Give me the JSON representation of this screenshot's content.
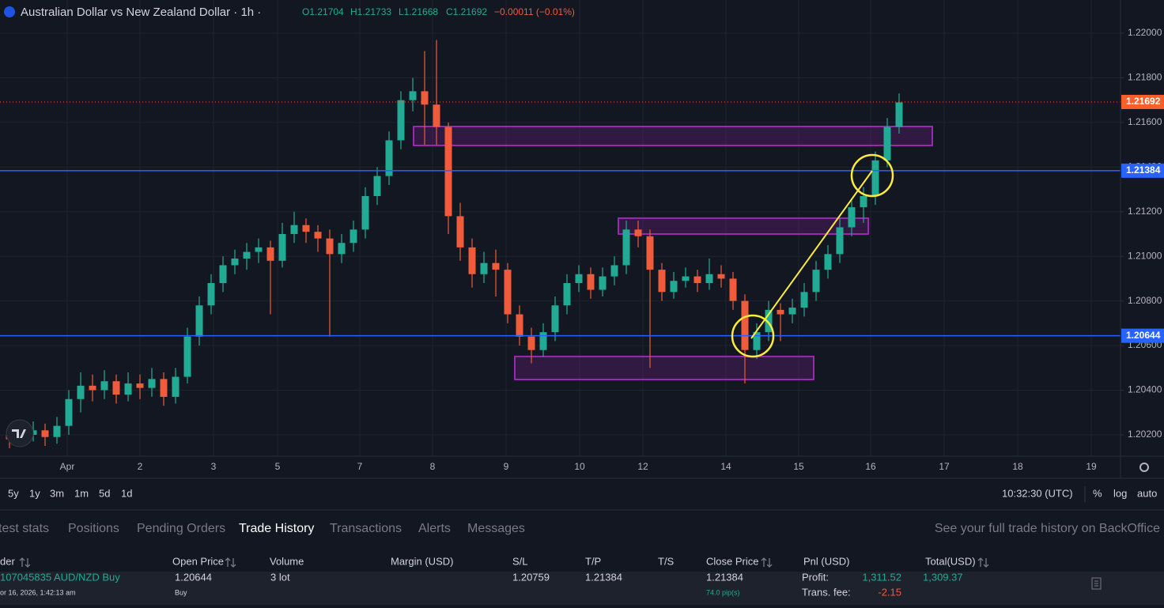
{
  "header": {
    "title": "Australian Dollar vs New Zealand Dollar · 1h ·",
    "ohlc": [
      "O1.21704",
      "H1.21733",
      "L1.21668",
      "C1.21692",
      "−0.00011 (−0.01%)"
    ]
  },
  "chart_data": {
    "type": "candlestick",
    "categories": [
      "Apr",
      "2",
      "3",
      "5",
      "7",
      "8",
      "9",
      "10",
      "12",
      "14",
      "15",
      "16",
      "17",
      "18",
      "19"
    ],
    "ylim": [
      1.20104,
      1.22149
    ],
    "yticks": [
      {
        "value": 1.22,
        "label": "1.22000"
      },
      {
        "value": 1.218,
        "label": "1.21800"
      },
      {
        "value": 1.216,
        "label": "1.21600"
      },
      {
        "value": 1.214,
        "label": "1.21400"
      },
      {
        "value": 1.212,
        "label": "1.21200"
      },
      {
        "value": 1.21,
        "label": "1.21000"
      },
      {
        "value": 1.208,
        "label": "1.20800"
      },
      {
        "value": 1.206,
        "label": "1.20600"
      },
      {
        "value": 1.204,
        "label": "1.20400"
      },
      {
        "value": 1.202,
        "label": "1.20200"
      }
    ],
    "grid": true,
    "up_color": "#22ab94",
    "down_color": "#ef5b3b",
    "candles": [
      [
        1.202,
        1.2024,
        1.2014,
        1.2018
      ],
      [
        1.2018,
        1.2025,
        1.2015,
        1.202
      ],
      [
        1.202,
        1.2026,
        1.2017,
        1.2022
      ],
      [
        1.2022,
        1.2025,
        1.2015,
        1.2019
      ],
      [
        1.2019,
        1.2028,
        1.2016,
        1.2024
      ],
      [
        1.2024,
        1.204,
        1.202,
        1.2036
      ],
      [
        1.2036,
        1.2048,
        1.203,
        1.2042
      ],
      [
        1.2042,
        1.2047,
        1.2035,
        1.204
      ],
      [
        1.204,
        1.2049,
        1.2036,
        1.2044
      ],
      [
        1.2044,
        1.2047,
        1.2034,
        1.2038
      ],
      [
        1.2038,
        1.2048,
        1.2035,
        1.2043
      ],
      [
        1.2043,
        1.2047,
        1.2036,
        1.2041
      ],
      [
        1.2041,
        1.205,
        1.2037,
        1.2045
      ],
      [
        1.2045,
        1.2048,
        1.2033,
        1.2037
      ],
      [
        1.2037,
        1.205,
        1.2034,
        1.2046
      ],
      [
        1.2046,
        1.2068,
        1.2043,
        1.2064
      ],
      [
        1.2064,
        1.2082,
        1.206,
        1.2078
      ],
      [
        1.2078,
        1.2092,
        1.2074,
        1.2088
      ],
      [
        1.2088,
        1.21,
        1.2084,
        1.2096
      ],
      [
        1.2096,
        1.2103,
        1.2092,
        1.2099
      ],
      [
        1.2099,
        1.2106,
        1.2094,
        1.2102
      ],
      [
        1.2102,
        1.2108,
        1.2097,
        1.2104
      ],
      [
        1.2104,
        1.2107,
        1.2074,
        1.2098
      ],
      [
        1.2098,
        1.2115,
        1.2095,
        1.211
      ],
      [
        1.211,
        1.212,
        1.2106,
        1.2114
      ],
      [
        1.2114,
        1.2117,
        1.2106,
        1.2111
      ],
      [
        1.2111,
        1.2114,
        1.2102,
        1.2108
      ],
      [
        1.2108,
        1.2112,
        1.2064,
        1.2101
      ],
      [
        1.2101,
        1.211,
        1.2097,
        1.2106
      ],
      [
        1.2106,
        1.2116,
        1.2102,
        1.2112
      ],
      [
        1.2112,
        1.2131,
        1.2108,
        1.2127
      ],
      [
        1.2127,
        1.214,
        1.2123,
        1.2136
      ],
      [
        1.2136,
        1.2156,
        1.2132,
        1.2152
      ],
      [
        1.2152,
        1.2174,
        1.2148,
        1.217
      ],
      [
        1.217,
        1.218,
        1.2165,
        1.2174
      ],
      [
        1.2174,
        1.2192,
        1.215,
        1.2168
      ],
      [
        1.2168,
        1.2197,
        1.215,
        1.2158
      ],
      [
        1.2158,
        1.216,
        1.211,
        1.2118
      ],
      [
        1.2118,
        1.2124,
        1.2098,
        1.2104
      ],
      [
        1.2104,
        1.2108,
        1.2086,
        1.2092
      ],
      [
        1.2092,
        1.2102,
        1.2088,
        1.2097
      ],
      [
        1.2097,
        1.2103,
        1.2082,
        1.2094
      ],
      [
        1.2094,
        1.2097,
        1.207,
        1.2074
      ],
      [
        1.2074,
        1.2078,
        1.206,
        1.2064
      ],
      [
        1.2064,
        1.2068,
        1.2052,
        1.2058
      ],
      [
        1.2058,
        1.207,
        1.2055,
        1.2066
      ],
      [
        1.2066,
        1.2082,
        1.2062,
        1.2078
      ],
      [
        1.2078,
        1.2092,
        1.2074,
        1.2088
      ],
      [
        1.2088,
        1.2096,
        1.2084,
        1.2092
      ],
      [
        1.2092,
        1.2095,
        1.2081,
        1.2085
      ],
      [
        1.2085,
        1.2095,
        1.2082,
        1.2091
      ],
      [
        1.2091,
        1.21,
        1.2087,
        1.2096
      ],
      [
        1.2096,
        1.2116,
        1.2092,
        1.2112
      ],
      [
        1.2112,
        1.2116,
        1.2104,
        1.2109
      ],
      [
        1.2109,
        1.2112,
        1.205,
        1.2094
      ],
      [
        1.2094,
        1.2097,
        1.208,
        1.2084
      ],
      [
        1.2084,
        1.2093,
        1.2081,
        1.2089
      ],
      [
        1.2089,
        1.2095,
        1.2086,
        1.2091
      ],
      [
        1.2091,
        1.2094,
        1.2084,
        1.2088
      ],
      [
        1.2088,
        1.2099,
        1.2085,
        1.2092
      ],
      [
        1.2092,
        1.2096,
        1.2086,
        1.209
      ],
      [
        1.209,
        1.2093,
        1.2076,
        1.208
      ],
      [
        1.208,
        1.2083,
        1.2043,
        1.2058
      ],
      [
        1.2058,
        1.207,
        1.2054,
        1.2066
      ],
      [
        1.2066,
        1.208,
        1.2062,
        1.2076
      ],
      [
        1.2076,
        1.2079,
        1.2062,
        1.2074
      ],
      [
        1.2074,
        1.2081,
        1.207,
        1.2077
      ],
      [
        1.2077,
        1.2088,
        1.2073,
        1.2084
      ],
      [
        1.2084,
        1.2098,
        1.208,
        1.2094
      ],
      [
        1.2094,
        1.2105,
        1.209,
        1.2101
      ],
      [
        1.2101,
        1.2117,
        1.2097,
        1.2113
      ],
      [
        1.2113,
        1.2126,
        1.2109,
        1.2122
      ],
      [
        1.2122,
        1.2131,
        1.2115,
        1.2127
      ],
      [
        1.2127,
        1.2147,
        1.2123,
        1.2143
      ],
      [
        1.2143,
        1.2162,
        1.214,
        1.2158
      ],
      [
        1.2158,
        1.2173,
        1.2155,
        1.2169
      ]
    ],
    "levels": [
      {
        "value": 1.21384,
        "label": "1.21384"
      },
      {
        "value": 1.20644,
        "label": "1.20644"
      }
    ],
    "level_color": "#2962ff",
    "last_price": {
      "value": 1.21692,
      "label": "1.21692"
    },
    "last_color": "#f7602b",
    "zones": [
      {
        "top": 1.21582,
        "bottom": 1.21497
      },
      {
        "top": 1.21171,
        "bottom": 1.211
      },
      {
        "top": 1.20551,
        "bottom": 1.20448
      }
    ],
    "zone_color": "#9c27b0"
  },
  "toolbar": {
    "ranges": [
      "5y",
      "1y",
      "3m",
      "1m",
      "5d",
      "1d"
    ],
    "clock": "10:32:30 (UTC)",
    "options": [
      "%",
      "log",
      "auto"
    ]
  },
  "tabs": {
    "items": [
      "test stats",
      "Positions",
      "Pending Orders",
      "Trade History",
      "Transactions",
      "Alerts",
      "Messages"
    ],
    "link": "See your full trade history on BackOffice"
  },
  "table": {
    "headers": [
      "der",
      "Open Price",
      "Volume",
      "Margin (USD)",
      "S/L",
      "T/P",
      "T/S",
      "Close Price",
      "Pnl (USD)",
      "Total(USD)"
    ],
    "row": {
      "order": "107045835 AUD/NZD Buy",
      "date": "or 16, 2026, 1:42:13 am",
      "open_price": "1.20644",
      "side": "Buy",
      "volume": "3 lot",
      "sl": "1.20759",
      "tp": "1.21384",
      "close_price": "1.21384",
      "pips": "74.0 pip(s)",
      "profit_label": "Profit:",
      "profit": "1,311.52",
      "fee_label": "Trans. fee:",
      "fee": "-2.15",
      "total": "1,309.37"
    }
  }
}
